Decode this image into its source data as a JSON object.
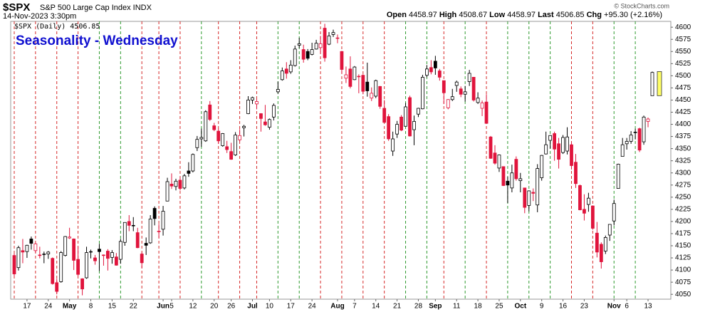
{
  "header": {
    "symbol": "$SPX",
    "name": "S&P 500 Large Cap Index INDX",
    "timestamp": "14-Nov-2023 3:30pm",
    "labels": {
      "open": "Open",
      "high": "High",
      "low": "Low",
      "last": "Last",
      "chg": "Chg"
    },
    "chg": "+95.30",
    "chg_pct": "(+2.16%)",
    "credit": "© StockCharts.com"
  },
  "chart_data": {
    "type": "candlestick",
    "title": "Seasonality - Wednesday",
    "legend": "$SPX (Daily)",
    "up_color": "#000000",
    "down_color": "#e0143c",
    "wednesday_up_color": "#2e9a2e",
    "wednesday_down_color": "#d62828",
    "range_color": "#ffff66",
    "ylim": [
      4040,
      4612
    ],
    "yticks": [
      4050,
      4075,
      4100,
      4125,
      4150,
      4175,
      4200,
      4225,
      4250,
      4275,
      4300,
      4325,
      4350,
      4375,
      4400,
      4425,
      4450,
      4475,
      4500,
      4525,
      4550,
      4575,
      4600
    ],
    "grid": false,
    "month_labels": [
      "May",
      "Jun",
      "Jul",
      "Aug",
      "Sep",
      "Oct",
      "Nov"
    ],
    "categories": [
      null,
      null,
      null,
      "17",
      null,
      null,
      null,
      null,
      "24",
      null,
      null,
      null,
      null,
      "May",
      null,
      null,
      null,
      null,
      "8",
      null,
      null,
      null,
      null,
      "15",
      null,
      null,
      null,
      null,
      "22",
      null,
      null,
      null,
      null,
      null,
      null,
      "Jun",
      null,
      "5",
      null,
      null,
      null,
      null,
      "12",
      null,
      null,
      null,
      null,
      "20",
      null,
      null,
      null,
      "26",
      null,
      null,
      null,
      null,
      "Jul",
      null,
      null,
      null,
      "10",
      null,
      null,
      null,
      null,
      "17",
      null,
      null,
      null,
      null,
      "24",
      null,
      null,
      null,
      null,
      null,
      "Aug",
      null,
      null,
      null,
      "7",
      null,
      null,
      null,
      null,
      "14",
      null,
      null,
      null,
      null,
      "21",
      null,
      null,
      null,
      null,
      "28",
      null,
      null,
      null,
      "Sep",
      null,
      null,
      null,
      null,
      "11",
      null,
      null,
      null,
      null,
      "18",
      null,
      null,
      null,
      null,
      "25",
      null,
      null,
      null,
      null,
      "Oct",
      null,
      null,
      null,
      null,
      "9",
      null,
      null,
      null,
      null,
      "16",
      null,
      null,
      null,
      null,
      "23",
      null,
      null,
      null,
      null,
      null,
      null,
      "Nov",
      null,
      null,
      "6",
      null,
      null,
      null,
      null,
      "13",
      null
    ],
    "wednesdays": [
      0,
      5,
      10,
      15,
      20,
      25,
      30,
      34,
      39,
      44,
      48,
      53,
      57,
      62,
      67,
      72,
      77,
      82,
      87,
      92,
      97,
      101,
      106,
      111,
      116,
      121,
      126,
      131,
      136,
      141,
      146
    ],
    "open": [
      4130,
      4105,
      4140,
      4138,
      4164,
      4140,
      4131,
      4132,
      4133,
      4124,
      4074,
      4076,
      4130,
      4166,
      4164,
      4122,
      4082,
      4084,
      4137,
      4125,
      4143,
      4130,
      4139,
      4126,
      4127,
      4122,
      4157,
      4200,
      4191,
      4177,
      4133,
      4155,
      4156,
      4227,
      4180,
      4184,
      4242,
      4277,
      4272,
      4285,
      4269,
      4304,
      4304,
      4352,
      4370,
      4366,
      4440,
      4397,
      4386,
      4356,
      4354,
      4344,
      4337,
      4368,
      4393,
      4422,
      4450,
      4442,
      4422,
      4405,
      4394,
      4415,
      4467,
      4492,
      4514,
      4508,
      4521,
      4563,
      4554,
      4550,
      4544,
      4555,
      4558,
      4598,
      4565,
      4585,
      4578,
      4550,
      4495,
      4514,
      4492,
      4498,
      4501,
      4487,
      4454,
      4458,
      4478,
      4433,
      4416,
      4345,
      4380,
      4415,
      4396,
      4455,
      4389,
      4421,
      4432,
      4501,
      4517,
      4530,
      4510,
      4490,
      4434,
      4451,
      4480,
      4473,
      4462,
      4488,
      4497,
      4445,
      4433,
      4446,
      4374,
      4341,
      4310,
      4313,
      4283,
      4269,
      4328,
      4284,
      4269,
      4233,
      4260,
      4234,
      4290,
      4339,
      4367,
      4381,
      4360,
      4342,
      4345,
      4358,
      4322,
      4274,
      4225,
      4235,
      4232,
      4176,
      4153,
      4139,
      4172,
      4201,
      4268,
      4334,
      4360,
      4365,
      4384,
      4391,
      4364,
      4406,
      4458.97
    ],
    "high": [
      4134,
      4150,
      4164,
      4152,
      4169,
      4156,
      4148,
      4138,
      4139,
      4126,
      4082,
      4139,
      4170,
      4187,
      4165,
      4148,
      4083,
      4148,
      4142,
      4131,
      4154,
      4132,
      4143,
      4141,
      4135,
      4164,
      4198,
      4213,
      4209,
      4187,
      4136,
      4167,
      4213,
      4231,
      4195,
      4232,
      4290,
      4299,
      4288,
      4292,
      4298,
      4322,
      4340,
      4376,
      4391,
      4429,
      4448,
      4403,
      4391,
      4382,
      4366,
      4362,
      4384,
      4390,
      4399,
      4458,
      4457,
      4452,
      4423,
      4440,
      4412,
      4443,
      4488,
      4517,
      4528,
      4532,
      4562,
      4578,
      4564,
      4555,
      4568,
      4574,
      4582,
      4607,
      4590,
      4595,
      4585,
      4551,
      4519,
      4540,
      4520,
      4503,
      4503,
      4527,
      4476,
      4492,
      4479,
      4450,
      4421,
      4385,
      4407,
      4419,
      4444,
      4459,
      4418,
      4434,
      4502,
      4522,
      4532,
      4541,
      4514,
      4490,
      4452,
      4473,
      4490,
      4478,
      4479,
      4512,
      4497,
      4466,
      4449,
      4462,
      4376,
      4357,
      4338,
      4313,
      4292,
      4317,
      4334,
      4300,
      4269,
      4264,
      4268,
      4318,
      4337,
      4385,
      4378,
      4385,
      4372,
      4378,
      4394,
      4363,
      4339,
      4276,
      4256,
      4259,
      4233,
      4199,
      4157,
      4171,
      4194,
      4245,
      4319,
      4372,
      4372,
      4386,
      4391,
      4393,
      4418,
      4414,
      4508.67
    ],
    "low": [
      4086,
      4099,
      4114,
      4125,
      4142,
      4135,
      4124,
      4114,
      4123,
      4070,
      4050,
      4074,
      4128,
      4164,
      4100,
      4088,
      4048,
      4082,
      4124,
      4111,
      4098,
      4109,
      4099,
      4113,
      4109,
      4113,
      4150,
      4180,
      4180,
      4145,
      4104,
      4131,
      4154,
      4192,
      4166,
      4171,
      4242,
      4267,
      4264,
      4264,
      4266,
      4292,
      4301,
      4345,
      4354,
      4364,
      4407,
      4386,
      4360,
      4354,
      4341,
      4327,
      4335,
      4364,
      4375,
      4421,
      4442,
      4431,
      4385,
      4397,
      4389,
      4408,
      4463,
      4490,
      4494,
      4504,
      4519,
      4557,
      4527,
      4532,
      4542,
      4554,
      4548,
      4529,
      4563,
      4580,
      4567,
      4505,
      4485,
      4474,
      4491,
      4464,
      4462,
      4457,
      4448,
      4454,
      4432,
      4403,
      4366,
      4335,
      4372,
      4386,
      4396,
      4375,
      4357,
      4415,
      4431,
      4497,
      4503,
      4502,
      4490,
      4442,
      4431,
      4448,
      4467,
      4456,
      4447,
      4479,
      4447,
      4442,
      4417,
      4401,
      4329,
      4317,
      4302,
      4273,
      4238,
      4260,
      4284,
      4260,
      4217,
      4221,
      4242,
      4219,
      4284,
      4338,
      4350,
      4325,
      4309,
      4339,
      4338,
      4307,
      4269,
      4223,
      4202,
      4220,
      4183,
      4126,
      4103,
      4133,
      4160,
      4192,
      4268,
      4334,
      4348,
      4360,
      4369,
      4343,
      4358,
      4394,
      4458.97
    ],
    "close": [
      4092,
      4146,
      4137,
      4151,
      4155,
      4154,
      4130,
      4133,
      4137,
      4072,
      4056,
      4136,
      4169,
      4168,
      4120,
      4091,
      4061,
      4136,
      4138,
      4119,
      4138,
      4131,
      4124,
      4136,
      4110,
      4159,
      4198,
      4192,
      4192,
      4146,
      4115,
      4151,
      4205,
      4206,
      4180,
      4221,
      4282,
      4273,
      4283,
      4268,
      4294,
      4299,
      4338,
      4369,
      4373,
      4426,
      4410,
      4389,
      4366,
      4381,
      4348,
      4328,
      4378,
      4377,
      4396,
      4450,
      4455,
      4447,
      4412,
      4399,
      4410,
      4439,
      4472,
      4510,
      4505,
      4522,
      4555,
      4566,
      4534,
      4536,
      4554,
      4567,
      4566,
      4537,
      4582,
      4589,
      4577,
      4513,
      4502,
      4478,
      4518,
      4499,
      4468,
      4469,
      4464,
      4490,
      4437,
      4404,
      4370,
      4370,
      4400,
      4388,
      4436,
      4376,
      4406,
      4433,
      4497,
      4514,
      4508,
      4516,
      4497,
      4465,
      4451,
      4457,
      4487,
      4462,
      4467,
      4505,
      4450,
      4454,
      4444,
      4402,
      4330,
      4320,
      4337,
      4274,
      4275,
      4300,
      4288,
      4288,
      4229,
      4263,
      4258,
      4309,
      4336,
      4358,
      4377,
      4349,
      4328,
      4373,
      4374,
      4315,
      4278,
      4224,
      4217,
      4248,
      4186,
      4137,
      4117,
      4167,
      4194,
      4237,
      4318,
      4358,
      4365,
      4378,
      4383,
      4347,
      4415,
      4411,
      4506.85
    ]
  }
}
